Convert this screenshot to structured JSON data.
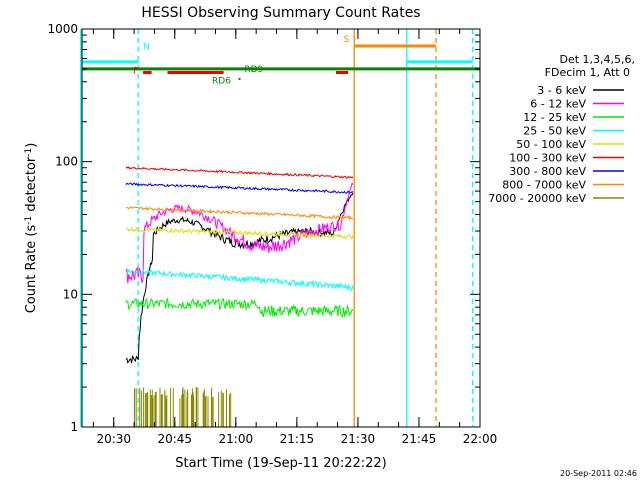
{
  "chart_data": {
    "type": "line",
    "title": "HESSI Observing Summary Count Rates",
    "xlabel": "Start Time (19-Sep-11 20:22:22)",
    "ylabel_main": "Count Rate (s",
    "ylabel_sup1": "-1",
    "ylabel_mid": " detector",
    "ylabel_sup2": "-1",
    "ylabel_end": ")",
    "yscale": "log",
    "ylim": [
      1,
      1000
    ],
    "xlim_minutes": [
      20.37,
      22.0
    ],
    "xticks": [
      {
        "label": "20:30",
        "value": 20.5
      },
      {
        "label": "20:45",
        "value": 20.75
      },
      {
        "label": "21:00",
        "value": 21.0
      },
      {
        "label": "21:15",
        "value": 21.25
      },
      {
        "label": "21:30",
        "value": 21.5
      },
      {
        "label": "21:45",
        "value": 21.75
      },
      {
        "label": "22:00",
        "value": 22.0
      }
    ],
    "yticks": [
      {
        "label": "1",
        "value": 1
      },
      {
        "label": "10",
        "value": 10
      },
      {
        "label": "100",
        "value": 100
      },
      {
        "label": "1000",
        "value": 1000
      }
    ],
    "legend_header": [
      "Det 1,3,4,5,6,",
      "FDecim 1, Att 0"
    ],
    "series": [
      {
        "name": "3 - 6 keV",
        "color": "#000000"
      },
      {
        "name": "6 - 12 keV",
        "color": "#ff00ff"
      },
      {
        "name": "12 - 25 keV",
        "color": "#00ee00"
      },
      {
        "name": "25 - 50 keV",
        "color": "#00ffff"
      },
      {
        "name": "50 - 100 keV",
        "color": "#dddd00"
      },
      {
        "name": "100 - 300 keV",
        "color": "#ee0000"
      },
      {
        "name": "300 - 800 keV",
        "color": "#0000ee"
      },
      {
        "name": "800 - 7000 keV",
        "color": "#ff8800"
      },
      {
        "name": "7000 - 20000 keV",
        "color": "#888800"
      }
    ],
    "flag_labels": {
      "N": "N",
      "F": "F",
      "S": "S",
      "RD6": "RD6",
      "RD9": "RD9"
    },
    "footer_date": "20-Sep-2011 02:46"
  }
}
